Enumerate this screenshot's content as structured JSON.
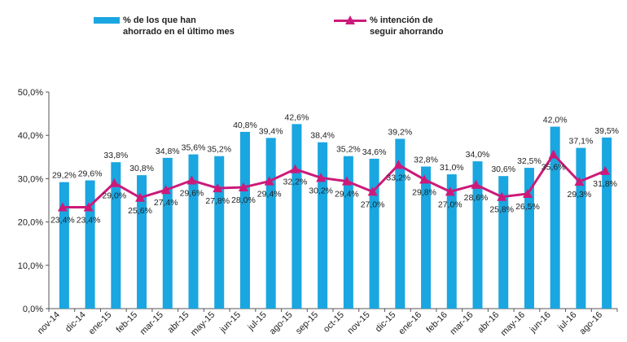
{
  "chart_data": {
    "type": "bar",
    "categories": [
      "nov-14",
      "dic-14",
      "ene-15",
      "feb-15",
      "mar-15",
      "abr-15",
      "may-15",
      "jun-15",
      "jul-15",
      "ago-15",
      "sep-15",
      "oct-15",
      "nov-15",
      "dic-15",
      "ene-16",
      "feb-16",
      "mar-16",
      "abr-16",
      "may-16",
      "jun-16",
      "jul-16",
      "ago-16"
    ],
    "series": [
      {
        "name": "% de los que han ahorrado en el último mes",
        "type": "bar",
        "color": "#1aa6e0",
        "values": [
          29.2,
          29.6,
          33.8,
          30.8,
          34.8,
          35.6,
          35.2,
          40.8,
          39.4,
          42.6,
          38.4,
          35.2,
          34.6,
          39.2,
          32.8,
          31.0,
          34.0,
          30.6,
          32.5,
          42.0,
          37.1,
          39.5
        ],
        "labels": [
          "29,2%",
          "29,6%",
          "33,8%",
          "30,8%",
          "34,8%",
          "35,6%",
          "35,2%",
          "40,8%",
          "39,4%",
          "42,6%",
          "38,4%",
          "35,2%",
          "34,6%",
          "39,2%",
          "32,8%",
          "31,0%",
          "34,0%",
          "30,6%",
          "32,5%",
          "42,0%",
          "37,1%",
          "39,5%"
        ]
      },
      {
        "name": "% intención de seguir ahorrando",
        "type": "line",
        "color": "#cc1a7a",
        "values": [
          23.4,
          23.4,
          29.0,
          25.6,
          27.4,
          29.6,
          27.8,
          28.0,
          29.4,
          32.2,
          30.2,
          29.4,
          27.0,
          33.2,
          29.8,
          27.0,
          28.6,
          25.8,
          26.5,
          35.6,
          29.3,
          31.8
        ],
        "labels": [
          "23,4%",
          "23,4%",
          "29,0%",
          "25,6%",
          "27,4%",
          "29,6%",
          "27,8%",
          "28,0%",
          "29,4%",
          "32,2%",
          "30,2%",
          "29,4%",
          "27,0%",
          "33,2%",
          "29,8%",
          "27,0%",
          "28,6%",
          "25,8%",
          "26,5%",
          "35,6%",
          "29,3%",
          "31,8%"
        ]
      }
    ],
    "legend": {
      "bar_line1": "% de los que han",
      "bar_line2": "ahorrado en el último mes",
      "line_line1": "% intención de",
      "line_line2": "seguir ahorrando"
    },
    "yticks": [
      "0,0%",
      "10,0%",
      "20,0%",
      "30,0%",
      "40,0%",
      "50,0%"
    ],
    "ylim": [
      0,
      50
    ],
    "grid": false,
    "legend_position": "top"
  }
}
